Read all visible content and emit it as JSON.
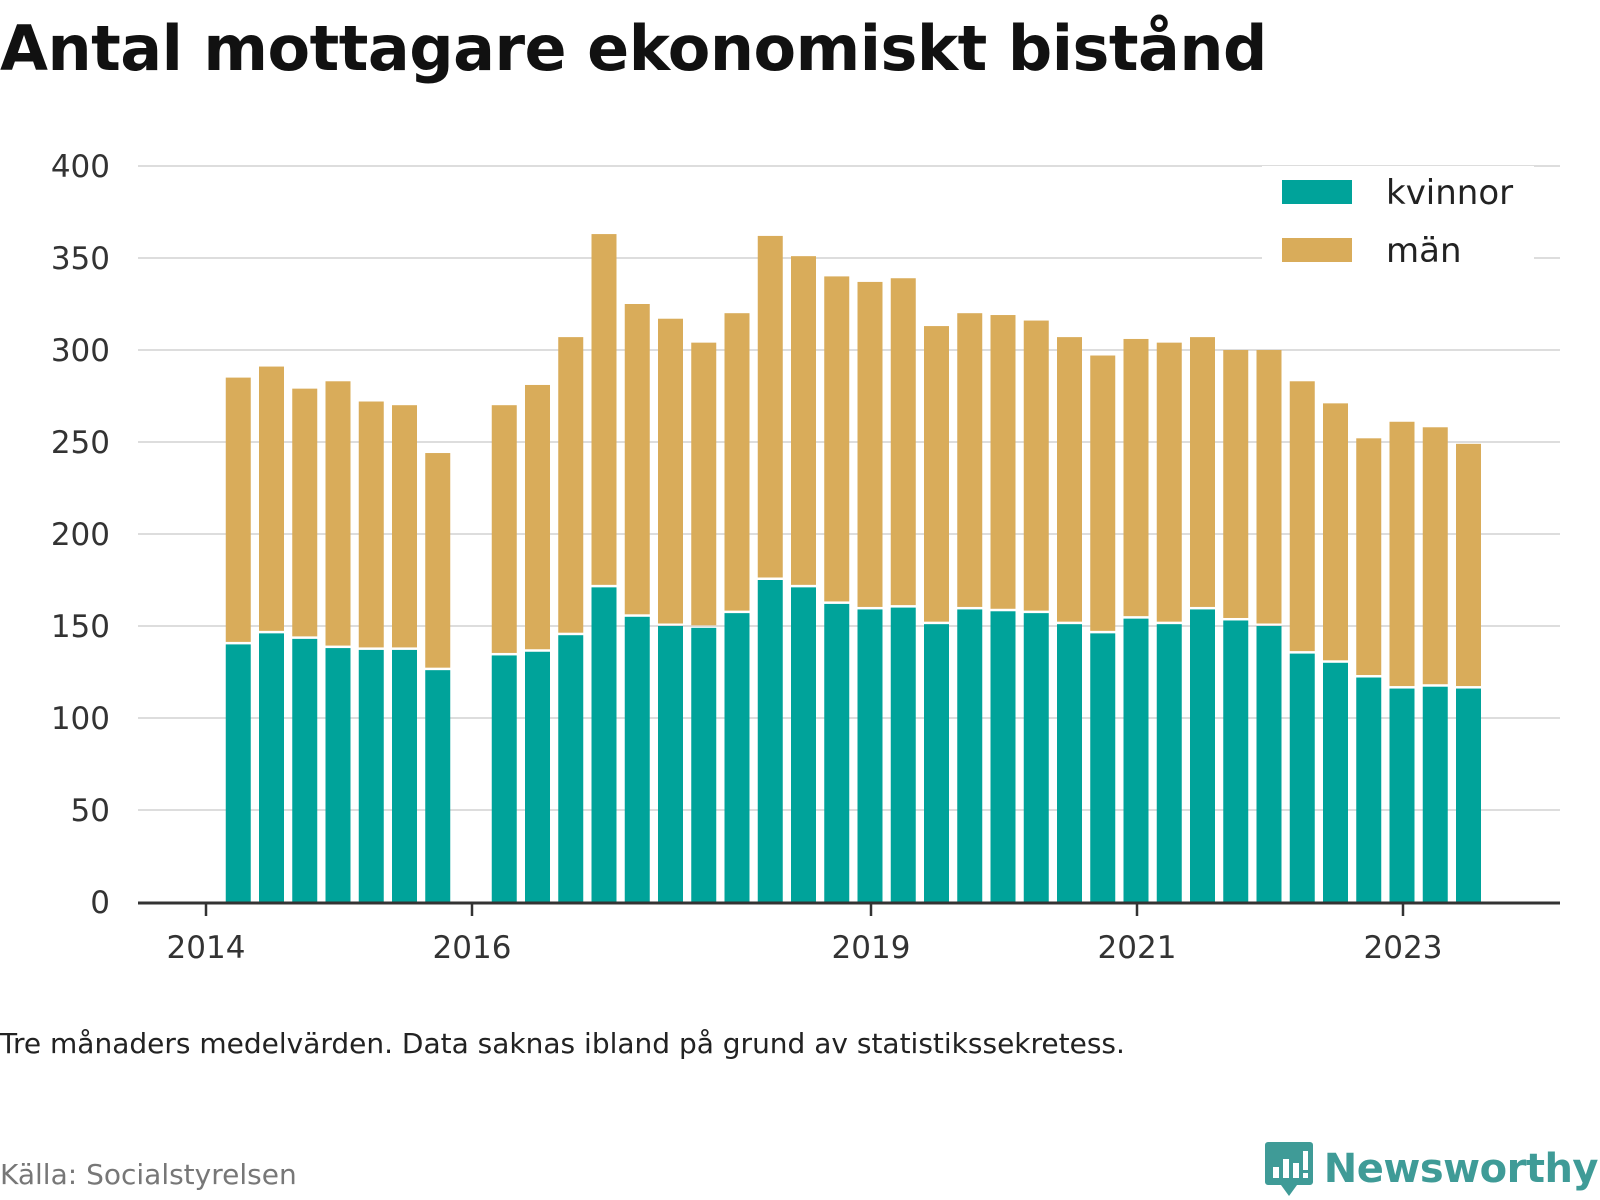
{
  "title": "Antal mottagare ekonomiskt bistånd",
  "note": "Tre månaders medelvärden. Data saknas ibland på grund av statistikssekretess.",
  "source": "Källa: Socialstyrelsen",
  "brand": {
    "name": "Newsworthy",
    "icon": "newsworthy-logo-icon",
    "color": "#3f9b97"
  },
  "chart_data": {
    "type": "bar",
    "stacked": true,
    "title": "Antal mottagare ekonomiskt bistånd",
    "xlabel": "",
    "ylabel": "",
    "ylim": [
      0,
      400
    ],
    "yticks": [
      0,
      50,
      100,
      150,
      200,
      250,
      300,
      350,
      400
    ],
    "xticks": [
      "2014",
      "2016",
      "2019",
      "2021",
      "2023"
    ],
    "grid": true,
    "legend_position": "top-right",
    "colors": {
      "kvinnor": "#00a39a",
      "män": "#d9ac5a"
    },
    "categories": [
      "2014-Q2",
      "2014-Q3",
      "2014-Q4",
      "2015-Q1",
      "2015-Q2",
      "2015-Q3",
      "2015-Q4",
      "2016-Q1",
      "2016-Q2",
      "2016-Q3",
      "2016-Q4",
      "2017-Q1",
      "2017-Q2",
      "2017-Q3",
      "2017-Q4",
      "2018-Q1",
      "2018-Q2",
      "2018-Q3",
      "2018-Q4",
      "2019-Q1",
      "2019-Q2",
      "2019-Q3",
      "2019-Q4",
      "2020-Q1",
      "2020-Q2",
      "2020-Q3",
      "2020-Q4",
      "2021-Q1",
      "2021-Q2",
      "2021-Q3",
      "2021-Q4",
      "2022-Q1",
      "2022-Q2",
      "2022-Q3",
      "2022-Q4",
      "2023-Q1",
      "2023-Q2",
      "2023-Q3"
    ],
    "series": [
      {
        "name": "kvinnor",
        "values": [
          140,
          146,
          143,
          138,
          137,
          137,
          126,
          null,
          134,
          136,
          145,
          171,
          155,
          150,
          149,
          157,
          175,
          171,
          162,
          159,
          160,
          151,
          159,
          158,
          157,
          151,
          146,
          154,
          151,
          159,
          153,
          150,
          135,
          130,
          122,
          116,
          117,
          116
        ]
      },
      {
        "name": "män",
        "values": [
          145,
          145,
          136,
          145,
          135,
          133,
          118,
          null,
          136,
          145,
          162,
          192,
          170,
          167,
          155,
          163,
          187,
          180,
          178,
          178,
          179,
          162,
          161,
          161,
          159,
          156,
          151,
          152,
          153,
          148,
          147,
          150,
          148,
          141,
          130,
          145,
          141,
          133
        ]
      }
    ]
  }
}
